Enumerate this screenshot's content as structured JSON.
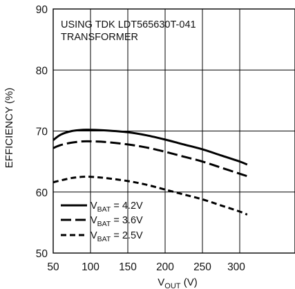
{
  "chart_data": {
    "type": "line",
    "title": "",
    "annotation": [
      "USING TDK LDT565630T-041",
      "TRANSFORMER"
    ],
    "xlabel": {
      "main": "V",
      "sub": "OUT",
      "unit": " (V)"
    },
    "ylabel": "EFFICIENCY (%)",
    "xlim": [
      50,
      310
    ],
    "ylim": [
      50,
      90
    ],
    "xticks": [
      50,
      100,
      150,
      200,
      250,
      300
    ],
    "yticks": [
      50,
      60,
      70,
      80,
      90
    ],
    "grid": true,
    "legend_position": "bottom-left",
    "series": [
      {
        "name": "V_BAT = 4.2V",
        "label": {
          "main": "V",
          "sub": "BAT",
          "rest": " = 4.2V"
        },
        "style": "solid",
        "x": [
          50,
          60,
          75,
          90,
          100,
          120,
          150,
          175,
          200,
          225,
          250,
          275,
          300,
          310
        ],
        "y": [
          68.5,
          69.4,
          70.0,
          70.2,
          70.2,
          70.1,
          69.8,
          69.3,
          68.6,
          67.8,
          67.0,
          66.0,
          65.0,
          64.5
        ]
      },
      {
        "name": "V_BAT = 3.6V",
        "label": {
          "main": "V",
          "sub": "BAT",
          "rest": " = 3.6V"
        },
        "style": "long-dash",
        "x": [
          50,
          60,
          75,
          90,
          100,
          120,
          150,
          175,
          200,
          225,
          250,
          275,
          300,
          310
        ],
        "y": [
          67.2,
          67.7,
          68.1,
          68.3,
          68.3,
          68.2,
          67.8,
          67.3,
          66.6,
          65.8,
          65.0,
          64.0,
          63.0,
          62.6
        ]
      },
      {
        "name": "V_BAT = 2.5V",
        "label": {
          "main": "V",
          "sub": "BAT",
          "rest": " = 2.5V"
        },
        "style": "short-dash",
        "x": [
          50,
          60,
          75,
          90,
          100,
          120,
          150,
          175,
          200,
          225,
          250,
          275,
          300,
          310
        ],
        "y": [
          61.6,
          61.9,
          62.3,
          62.5,
          62.5,
          62.3,
          61.8,
          61.2,
          60.4,
          59.6,
          58.8,
          57.8,
          56.8,
          56.3
        ]
      }
    ]
  }
}
